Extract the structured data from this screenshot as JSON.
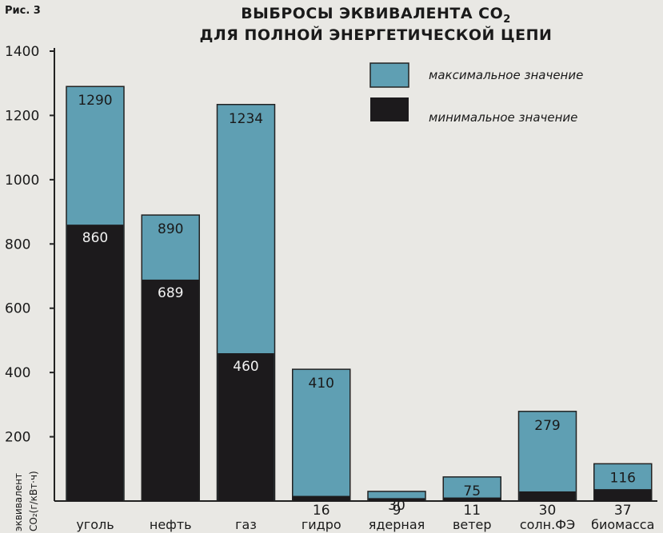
{
  "figure_label": "Рис. 3",
  "chart_data": {
    "type": "bar",
    "title": "ВЫБРОСЫ ЭКВИВАЛЕНТА CO",
    "title_subscript": "2",
    "subtitle": "ДЛЯ ПОЛНОЙ ЭНЕРГЕТИЧЕСКОЙ ЦЕПИ",
    "ylabel_line1": "эквивалент",
    "ylabel_line2": "CO₂(г/кВт·ч)",
    "ylim": [
      0,
      1400
    ],
    "yticks": [
      200,
      400,
      600,
      800,
      1000,
      1200,
      1400
    ],
    "grid": false,
    "legend_position": "top-right",
    "categories": [
      "уголь",
      "нефть",
      "газ",
      "гидро",
      "ядерная",
      "ветер",
      "солн.ФЭ",
      "биомасса"
    ],
    "series": [
      {
        "name": "максимальное значение",
        "values": [
          1290,
          890,
          1234,
          410,
          30,
          75,
          279,
          116
        ],
        "color": "#5f9fb3"
      },
      {
        "name": "минимальное значение",
        "values": [
          860,
          689,
          460,
          16,
          9,
          11,
          30,
          37
        ],
        "color": "#1c1a1c"
      }
    ]
  }
}
